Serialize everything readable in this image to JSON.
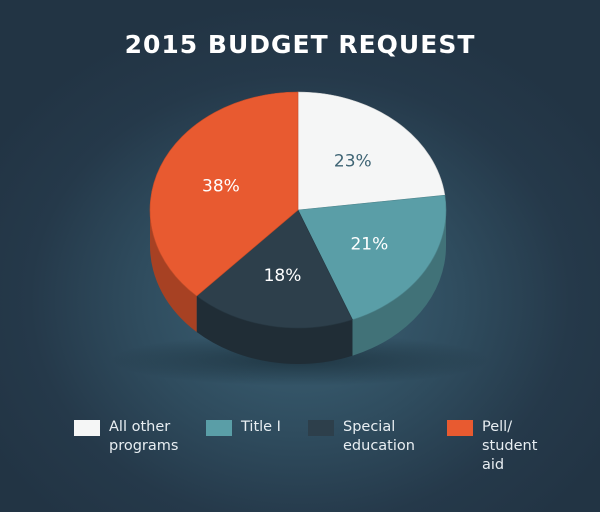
{
  "page": {
    "title": "2015 BUDGET REQUEST"
  },
  "chart_data": {
    "type": "pie",
    "title": "2015 BUDGET REQUEST",
    "slices": [
      {
        "label": "All other programs",
        "legend_text": "All other\nprograms",
        "value": 23,
        "value_label": "23%",
        "color": "#f5f6f6",
        "text_color": "#3e6474"
      },
      {
        "label": "Title I",
        "legend_text": "Title I",
        "value": 21,
        "value_label": "21%",
        "color": "#5a9ea7",
        "text_color": "#ffffff"
      },
      {
        "label": "Special education",
        "legend_text": "Special\neducation",
        "value": 18,
        "value_label": "18%",
        "color": "#2d3f4b",
        "text_color": "#ffffff"
      },
      {
        "label": "Pell/ student aid",
        "legend_text": "Pell/\nstudent\naid",
        "value": 38,
        "value_label": "38%",
        "color": "#e85a30",
        "text_color": "#ffffff"
      }
    ],
    "legend_position": "bottom"
  }
}
